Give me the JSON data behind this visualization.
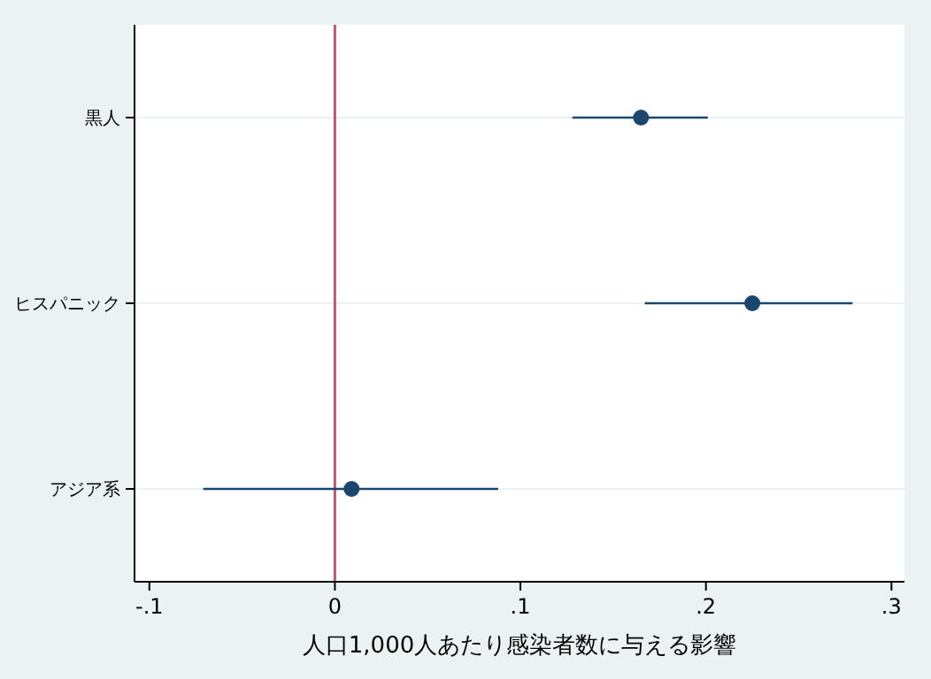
{
  "chart_data": {
    "type": "scatter",
    "orientation": "horizontal",
    "xlabel": "人口1,000人あたり感染者数に与える影響",
    "categories": [
      "黒人",
      "ヒスパニック",
      "アジア系"
    ],
    "series": [
      {
        "color": "#1a476f",
        "values": [
          0.165,
          0.225,
          0.009
        ],
        "errors": [
          [
            0.128,
            0.201
          ],
          [
            0.167,
            0.279
          ],
          [
            -0.071,
            0.088
          ]
        ]
      }
    ],
    "xlim": [
      -0.108,
      0.307
    ],
    "xticks": [
      {
        "value": -0.1,
        "label": "-.1"
      },
      0,
      {
        "value": 0.1,
        "label": ".1"
      },
      {
        "value": 0.2,
        "label": ".2"
      },
      {
        "value": 0.3,
        "label": ".3"
      }
    ],
    "ref_lines": [
      {
        "axis": "x",
        "value": 0,
        "color": "#c0596b"
      }
    ],
    "grid": "y",
    "marker": "circle"
  }
}
